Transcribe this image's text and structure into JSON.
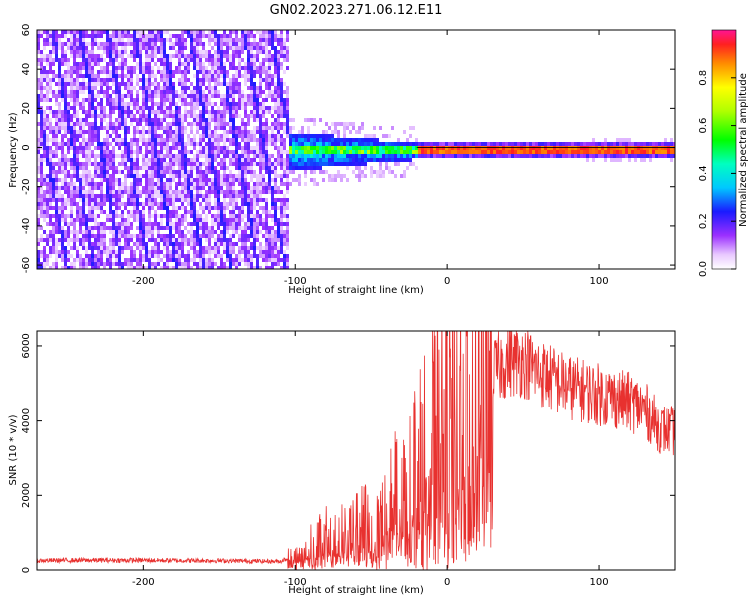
{
  "title": "GN02.2023.271.06.12.E11",
  "colors": {
    "snr_line": "#e8312f",
    "axis": "#000000"
  },
  "chart_data": [
    {
      "type": "heatmap",
      "xlabel": "Height of straight line (km)",
      "ylabel": "Frequency (Hz)",
      "xlim": [
        -270,
        150
      ],
      "ylim": [
        -62,
        60
      ],
      "xticks": [
        -200,
        -100,
        0,
        100
      ],
      "xtick_labels": [
        "-200",
        "-100",
        "0",
        "100"
      ],
      "yticks": [
        -60,
        -40,
        -20,
        0,
        20,
        40,
        60
      ],
      "ytick_labels": [
        "-60",
        "-40",
        "-20",
        "0",
        "20",
        "40",
        "60"
      ],
      "colorbar": {
        "label": "Normalized spectral amplitude",
        "range": [
          0,
          1
        ],
        "ticks": [
          0.0,
          0.2,
          0.4,
          0.6,
          0.8
        ],
        "tick_labels": [
          "0.0",
          "0.2",
          "0.4",
          "0.6",
          "0.8"
        ]
      },
      "regions": [
        {
          "description_x": [
            -270,
            -105
          ],
          "freq_range": [
            -62,
            60
          ],
          "amplitude": [
            0.05,
            0.2
          ]
        },
        {
          "description_x": [
            -105,
            -20
          ],
          "freq_range": [
            -12,
            8
          ],
          "amplitude": [
            0.1,
            0.5
          ]
        },
        {
          "description_x": [
            -20,
            150
          ],
          "freq_range": [
            -2,
            2
          ],
          "amplitude": [
            0.8,
            1.0
          ]
        }
      ]
    },
    {
      "type": "line",
      "xlabel": "Height of straight line (km)",
      "ylabel": "SNR (10 * v/v)",
      "xlim": [
        -270,
        150
      ],
      "ylim": [
        0,
        6400
      ],
      "xticks": [
        -200,
        -100,
        0,
        100
      ],
      "xtick_labels": [
        "-200",
        "-100",
        "0",
        "100"
      ],
      "yticks": [
        0,
        2000,
        4000,
        6000
      ],
      "ytick_labels": [
        "0",
        "2000",
        "4000",
        "6000"
      ],
      "series": [
        {
          "x": [
            -270,
            -250,
            -200,
            -150,
            -110,
            -100,
            -90,
            -80,
            -70,
            -60,
            -50,
            -40,
            -30,
            -20,
            -10,
            0,
            10,
            20,
            30,
            40,
            50,
            60,
            70,
            80,
            90,
            100,
            110,
            120,
            130,
            140,
            150
          ],
          "y": [
            250,
            260,
            260,
            250,
            230,
            400,
            700,
            900,
            1000,
            1100,
            1400,
            1800,
            2200,
            2900,
            3600,
            4200,
            4600,
            5000,
            5300,
            5600,
            5600,
            5300,
            5100,
            4900,
            4800,
            4700,
            4600,
            4500,
            4300,
            3800,
            3700
          ]
        }
      ]
    }
  ]
}
